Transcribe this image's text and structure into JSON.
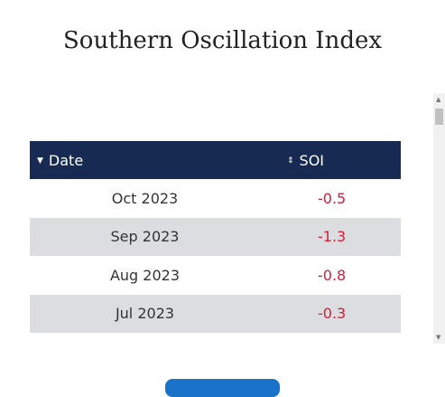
{
  "header": {
    "title": "Southern Oscillation Index"
  },
  "table": {
    "columns": [
      "Date",
      "SOI"
    ],
    "rows": [
      [
        "Oct 2023",
        "-0.5"
      ],
      [
        "Sep 2023",
        "-1.3"
      ],
      [
        "Aug 2023",
        "-0.8"
      ],
      [
        "Jul 2023",
        "-0.3"
      ]
    ]
  }
}
